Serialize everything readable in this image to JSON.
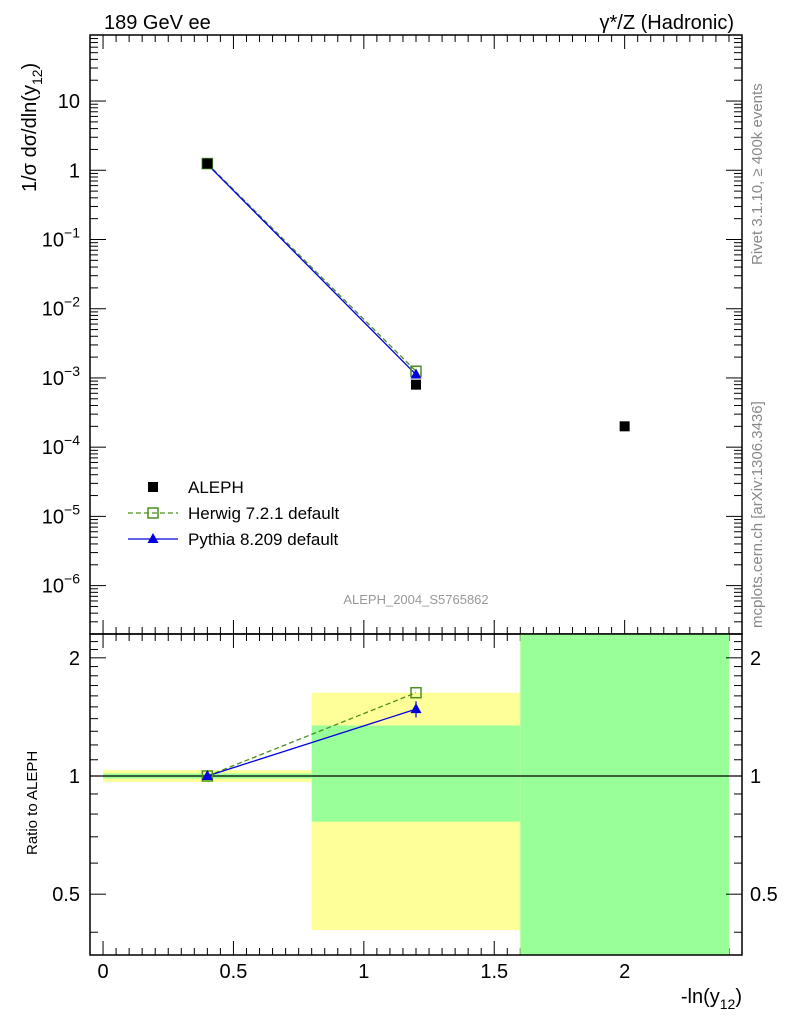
{
  "header": {
    "left": "189 GeV ee",
    "right": "γ*/Z (Hadronic)"
  },
  "side_labels": {
    "rivet": "Rivet 3.1.10, ≥ 400k events",
    "mcplots": "mcplots.cern.ch [arXiv:1306.3436]"
  },
  "watermark": "ALEPH_2004_S5765862",
  "colors": {
    "data": "#000000",
    "herwig": "#4a8f1f",
    "pythia": "#0000dd",
    "band_yellow": "#ffff99",
    "band_green": "#99ff99"
  },
  "chart_data": [
    {
      "type": "line",
      "panel": "main",
      "ylabel": "1/σ dσ/dln(y12)",
      "yscale": "log",
      "xlim": [
        -0.05,
        2.45
      ],
      "ylim": [
        2e-07,
        90
      ],
      "y_ticks": [
        {
          "value": 10,
          "label": "10"
        },
        {
          "value": 1,
          "label": "1"
        },
        {
          "value": 0.1,
          "base": "10",
          "exp": "−1"
        },
        {
          "value": 0.01,
          "base": "10",
          "exp": "−2"
        },
        {
          "value": 0.001,
          "base": "10",
          "exp": "−3"
        },
        {
          "value": 0.0001,
          "base": "10",
          "exp": "−4"
        },
        {
          "value": 1e-05,
          "base": "10",
          "exp": "−5"
        },
        {
          "value": 1e-06,
          "base": "10",
          "exp": "−6"
        }
      ],
      "legend_position": "lower-left",
      "series": [
        {
          "name": "ALEPH",
          "style": "data",
          "x": [
            0.4,
            1.2,
            2.0
          ],
          "y": [
            1.25,
            0.0008,
            0.0002
          ]
        },
        {
          "name": "Herwig 7.2.1 default",
          "style": "herwig",
          "x": [
            0.4,
            1.2
          ],
          "y": [
            1.25,
            0.00125
          ]
        },
        {
          "name": "Pythia 8.209 default",
          "style": "pythia",
          "x": [
            0.4,
            1.2
          ],
          "y": [
            1.22,
            0.00112
          ]
        }
      ]
    },
    {
      "type": "line",
      "panel": "ratio",
      "ylabel": "Ratio to ALEPH",
      "xlabel": "-ln(y12)",
      "yscale": "log",
      "xlim": [
        -0.05,
        2.45
      ],
      "ylim": [
        0.35,
        2.3
      ],
      "x_ticks": [
        {
          "value": 0,
          "label": "0"
        },
        {
          "value": 0.5,
          "label": "0.5"
        },
        {
          "value": 1,
          "label": "1"
        },
        {
          "value": 1.5,
          "label": "1.5"
        },
        {
          "value": 2,
          "label": "2"
        }
      ],
      "y_ticks": [
        {
          "value": 0.5,
          "label": "0.5"
        },
        {
          "value": 1,
          "label": "1"
        },
        {
          "value": 2,
          "label": "2"
        }
      ],
      "bands": [
        {
          "x0": 0.0,
          "x1": 0.8,
          "stat_lo": 0.985,
          "stat_hi": 1.015,
          "tot_lo": 0.965,
          "tot_hi": 1.035
        },
        {
          "x0": 0.8,
          "x1": 1.6,
          "stat_lo": 0.765,
          "stat_hi": 1.345,
          "tot_lo": 0.405,
          "tot_hi": 1.63
        },
        {
          "x0": 1.6,
          "x1": 2.4,
          "stat_lo": 0.35,
          "stat_hi": 2.3,
          "tot_lo": 0.35,
          "tot_hi": 2.3
        }
      ],
      "series": [
        {
          "name": "Herwig 7.2.1 default",
          "style": "herwig",
          "x": [
            0.4,
            1.2
          ],
          "y": [
            1.0,
            1.63
          ]
        },
        {
          "name": "Pythia 8.209 default",
          "style": "pythia",
          "x": [
            0.4,
            1.2
          ],
          "y": [
            1.0,
            1.48
          ],
          "err": [
            0.0,
            0.07
          ]
        }
      ]
    }
  ]
}
